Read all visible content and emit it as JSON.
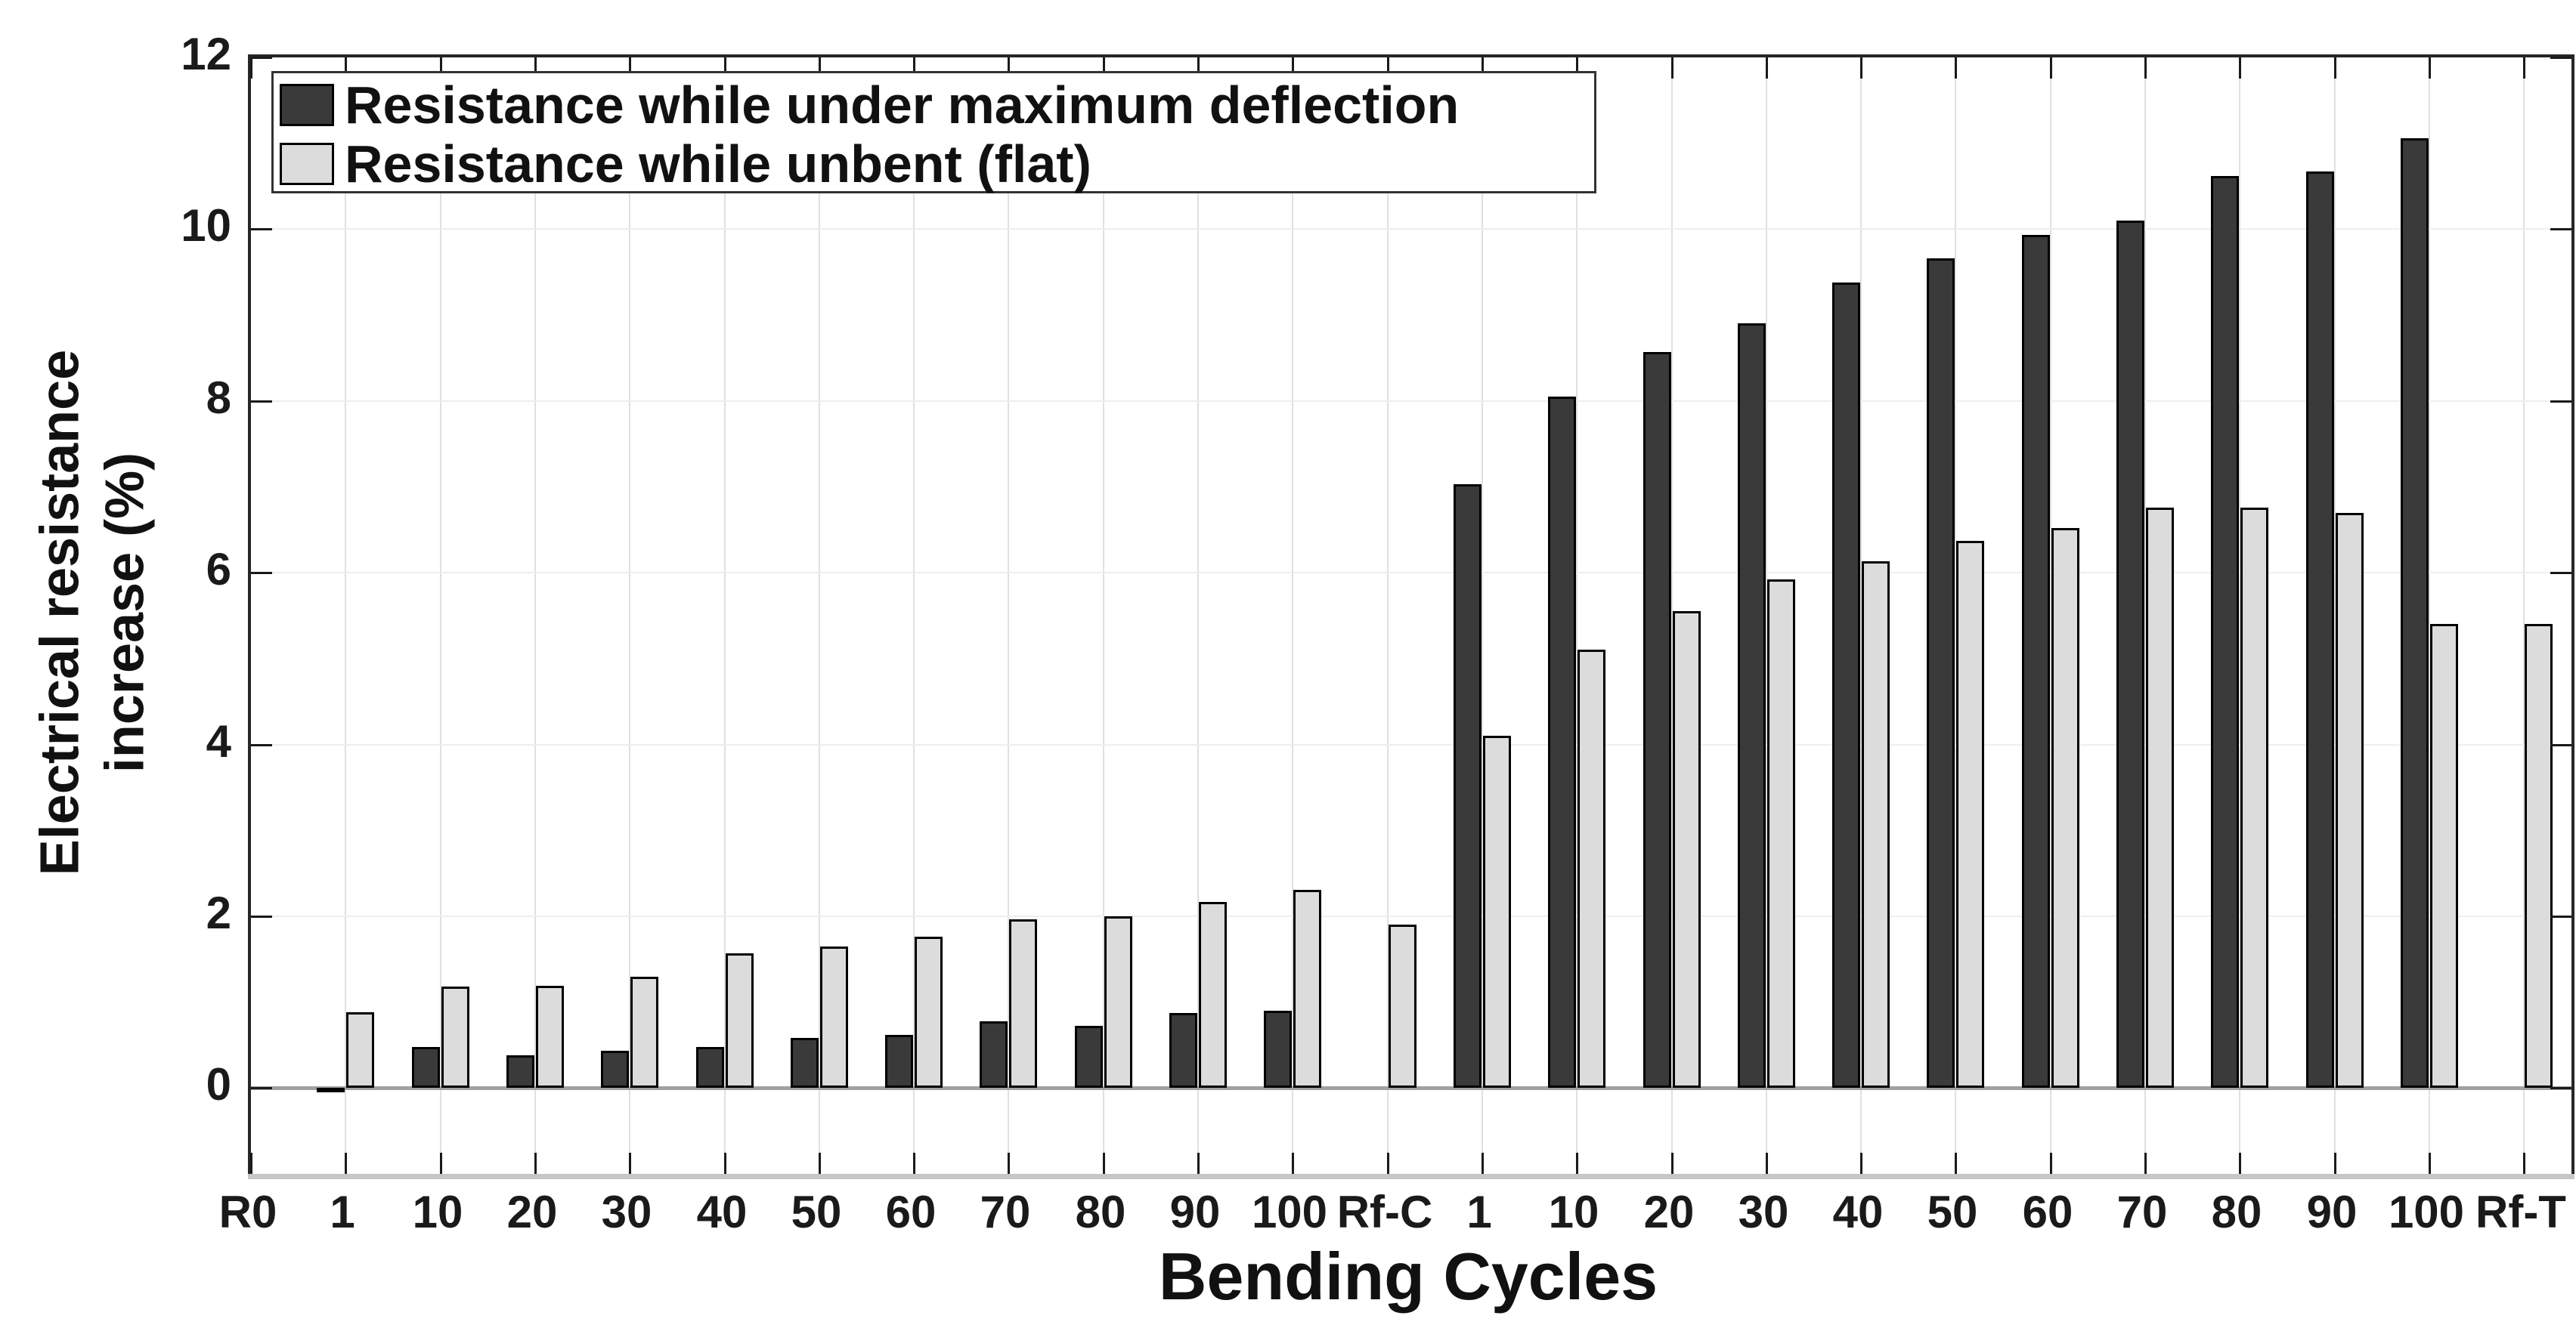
{
  "figure": {
    "background": "#ffffff",
    "axis_box_color": "#262626"
  },
  "chart_data": {
    "type": "bar",
    "title": "",
    "xlabel": "Bending Cycles",
    "ylabel": "Electrical resistance increase (%)",
    "ylabel_lines": [
      "Electrical resistance",
      "increase (%)"
    ],
    "categories": [
      "R0",
      "1",
      "10",
      "20",
      "30",
      "40",
      "50",
      "60",
      "70",
      "80",
      "90",
      "100",
      "Rf-C",
      "1",
      "10",
      "20",
      "30",
      "40",
      "50",
      "60",
      "70",
      "80",
      "90",
      "100",
      "Rf-T"
    ],
    "series": [
      {
        "name": "Resistance while under maximum deflection",
        "color": "#3a3a3a",
        "values": [
          0,
          -0.04,
          0.48,
          0.38,
          0.43,
          0.48,
          0.58,
          0.62,
          0.78,
          0.72,
          0.87,
          0.9,
          null,
          7.03,
          8.05,
          8.57,
          8.9,
          9.38,
          9.66,
          9.93,
          10.1,
          10.62,
          10.67,
          11.06,
          null
        ]
      },
      {
        "name": "Resistance while unbent (flat)",
        "color": "#dcdcdc",
        "values": [
          0,
          0.88,
          1.18,
          1.19,
          1.3,
          1.57,
          1.65,
          1.76,
          1.96,
          2.0,
          2.17,
          2.31,
          1.9,
          4.1,
          5.1,
          5.55,
          5.92,
          6.13,
          6.37,
          6.52,
          6.76,
          6.76,
          6.7,
          5.4,
          5.4
        ]
      }
    ],
    "ylim": [
      -1,
      12
    ],
    "yticks": [
      0,
      2,
      4,
      6,
      8,
      10,
      12
    ],
    "grid": true,
    "legend_position": "top-left",
    "bar_edge_color": "#000000",
    "zero_line_color": "#a0a0a0",
    "gridline_v_color": "#e0e0e0",
    "gridline_h_color": "#eeeeee"
  }
}
